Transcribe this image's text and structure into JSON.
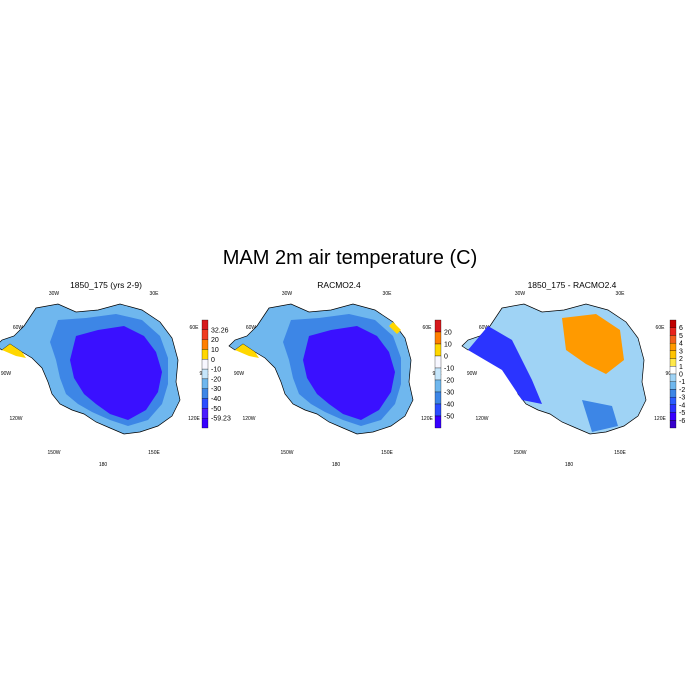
{
  "figure": {
    "title": "MAM 2m air temperature (C)"
  },
  "panels": [
    {
      "id": "model",
      "title": "1850_175 (yrs 2-9)",
      "colorbar": {
        "labels": [
          "32.26",
          "20",
          "10",
          "0",
          "-10",
          "-20",
          "-30",
          "-40",
          "-50",
          "-59.23"
        ],
        "colors": [
          "#d7191c",
          "#f03b20",
          "#ff7f00",
          "#ffd700",
          "#f7f7ff",
          "#c6e6fb",
          "#6fb7ee",
          "#3d86e6",
          "#2b4dff",
          "#4a1cff",
          "#3700ff"
        ]
      }
    },
    {
      "id": "racmo",
      "title": "RACMO2.4",
      "colorbar": {
        "labels": [
          "20",
          "10",
          "0",
          "-10",
          "-20",
          "-30",
          "-40",
          "-50"
        ],
        "colors": [
          "#d7191c",
          "#ff7f00",
          "#ffd700",
          "#f7f7ff",
          "#c6e6fb",
          "#6fb7ee",
          "#3d86e6",
          "#2b4dff",
          "#3700ff"
        ]
      }
    },
    {
      "id": "diff",
      "title": "1850_175 - RACMO2.4",
      "colorbar": {
        "labels": [
          "6",
          "5",
          "4",
          "3",
          "2",
          "1",
          "0",
          "-1",
          "-2",
          "-3",
          "-4",
          "-5",
          "-6"
        ],
        "colors": [
          "#c00000",
          "#e8231c",
          "#f2601b",
          "#ff9a00",
          "#ffc400",
          "#ffe84a",
          "#ffffff",
          "#9fd3f5",
          "#6fb7ee",
          "#3d86e6",
          "#2b5cff",
          "#2b34ff",
          "#3a00ff",
          "#3700cc"
        ]
      }
    }
  ],
  "map_labels": {
    "top_left": "30W",
    "top_right": "30E",
    "left_upper": "60W",
    "left_mid": "90W",
    "left_lower": "120W",
    "right_upper": "60E",
    "right_mid": "90E",
    "right_lower": "120E",
    "bottom_left": "150W",
    "bottom_right": "150E",
    "bottom": "180"
  },
  "colors": {
    "ice_interior": "#3a10ff",
    "ice_mid": "#3d86e6",
    "ice_coast": "#6fb7ee",
    "diff_warm": "#ff9a00",
    "diff_cool": "#3d86e6"
  }
}
